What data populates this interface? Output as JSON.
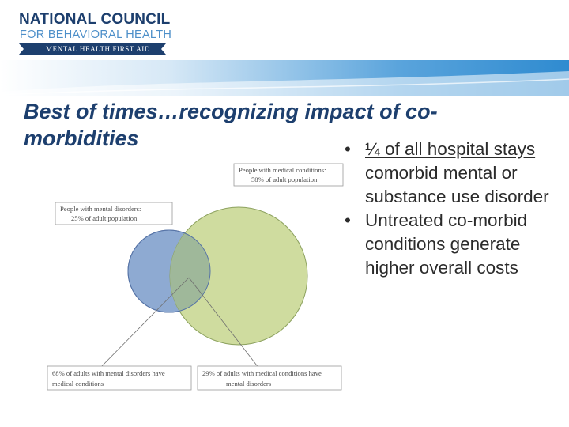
{
  "logo": {
    "line1": "NATIONAL COUNCIL",
    "line2": "FOR BEHAVIORAL HEALTH",
    "ribbon": "MENTAL HEALTH FIRST AID"
  },
  "colors": {
    "brand_navy": "#1d3f6e",
    "brand_blue": "#4d8fc9",
    "banner_blue": "#2f8bd0",
    "venn_medical": "#cfdc9f",
    "venn_mental": "#8eaad2",
    "venn_overlap": "#9fb89a"
  },
  "slide": {
    "title": "Best of times…recognizing impact of co-morbidities",
    "bullets": [
      {
        "underlined": "¼ of all hospital stays",
        "rest": " comorbid mental or substance use disorder"
      },
      {
        "underlined": "",
        "rest": "Untreated co-morbid conditions generate higher overall costs"
      }
    ]
  },
  "figure": {
    "medical_label": [
      "People with medical conditions:",
      "58% of adult population"
    ],
    "mental_label": [
      "People with mental disorders:",
      "25% of adult population"
    ],
    "overlap_left_label": [
      "68% of adults with mental disorders have",
      "medical conditions"
    ],
    "overlap_right_label": [
      "29% of adults with medical conditions have",
      "mental disorders"
    ]
  }
}
